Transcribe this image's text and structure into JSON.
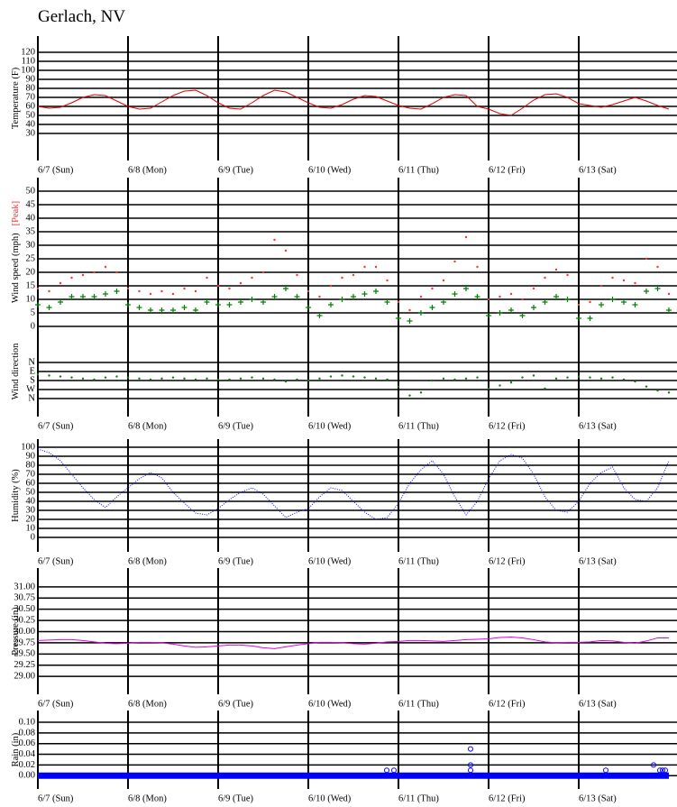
{
  "title": "Gerlach, NV",
  "chart_data": [
    {
      "type": "line",
      "ylabel": "Temperature (F)",
      "grid": true,
      "x": [
        0,
        0.125,
        0.25,
        0.375,
        0.5,
        0.625,
        0.75,
        0.875,
        1,
        1.125,
        1.25,
        1.375,
        1.5,
        1.625,
        1.75,
        1.875,
        2,
        2.125,
        2.25,
        2.375,
        2.5,
        2.625,
        2.75,
        2.875,
        3,
        3.125,
        3.25,
        3.375,
        3.5,
        3.625,
        3.75,
        3.875,
        4,
        4.125,
        4.25,
        4.375,
        4.5,
        4.625,
        4.75,
        4.875,
        5,
        5.125,
        5.25,
        5.375,
        5.5,
        5.625,
        5.75,
        5.875,
        6,
        6.125,
        6.25,
        6.375,
        6.5,
        6.625,
        6.75,
        6.875,
        7
      ],
      "xlim": [
        0,
        7
      ],
      "xticks": [
        {
          "value": 0,
          "label": "6/7 (Sun)"
        },
        {
          "value": 1,
          "label": "6/8 (Mon)"
        },
        {
          "value": 2,
          "label": "6/9 (Tue)"
        },
        {
          "value": 3,
          "label": "6/10 (Wed)"
        },
        {
          "value": 4,
          "label": "6/11 (Thu)"
        },
        {
          "value": 5,
          "label": "6/12 (Fri)"
        },
        {
          "value": 6,
          "label": "6/13 (Sat)"
        }
      ],
      "ylim": [
        0,
        138
      ],
      "yticks": [
        30,
        40,
        50,
        60,
        70,
        80,
        90,
        100,
        110,
        120
      ],
      "series": [
        {
          "color": "#e00000",
          "values": [
            60,
            58,
            59,
            64,
            70,
            73,
            72,
            66,
            60,
            57,
            58,
            65,
            72,
            77,
            78,
            72,
            64,
            58,
            57,
            64,
            72,
            78,
            76,
            70,
            64,
            59,
            58,
            62,
            68,
            72,
            71,
            66,
            61,
            58,
            57,
            63,
            70,
            73,
            72,
            60,
            57,
            52,
            50,
            58,
            67,
            73,
            74,
            70,
            63,
            61,
            59,
            62,
            66,
            70,
            66,
            61,
            57
          ]
        }
      ]
    },
    {
      "type": "scatter",
      "ylabel": "Wind speed (mph)",
      "grid": true,
      "xtick_labels": false,
      "x": [
        0,
        0.125,
        0.25,
        0.375,
        0.5,
        0.625,
        0.75,
        0.875,
        1,
        1.125,
        1.25,
        1.375,
        1.5,
        1.625,
        1.75,
        1.875,
        2,
        2.125,
        2.25,
        2.375,
        2.5,
        2.625,
        2.75,
        2.875,
        3,
        3.125,
        3.25,
        3.375,
        3.5,
        3.625,
        3.75,
        3.875,
        4,
        4.125,
        4.25,
        4.375,
        4.5,
        4.625,
        4.75,
        4.875,
        5,
        5.125,
        5.25,
        5.375,
        5.5,
        5.625,
        5.75,
        5.875,
        6,
        6.125,
        6.25,
        6.375,
        6.5,
        6.625,
        6.75,
        6.875,
        7
      ],
      "xlim": [
        0,
        7
      ],
      "xticks": [
        0,
        1,
        2,
        3,
        4,
        5,
        6
      ],
      "ylim": [
        0,
        55
      ],
      "yticks": [
        0,
        5,
        10,
        15,
        20,
        25,
        30,
        35,
        40,
        45,
        50
      ],
      "series": [
        {
          "name": "[Peak]",
          "color": "#ff3030",
          "marker": ".",
          "values": [
            14,
            13,
            16,
            18,
            19,
            20,
            22,
            20,
            14,
            13,
            12,
            13,
            12,
            14,
            13,
            18,
            15,
            14,
            16,
            18,
            20,
            32,
            28,
            19,
            13,
            11,
            15,
            18,
            19,
            22,
            22,
            17,
            9,
            6,
            11,
            14,
            17,
            24,
            33,
            22,
            10,
            11,
            12,
            10,
            14,
            18,
            21,
            19,
            8,
            9,
            15,
            18,
            17,
            16,
            25,
            22,
            12
          ]
        },
        {
          "color": "#008000",
          "marker": "+",
          "values": [
            8,
            7,
            9,
            11,
            11,
            11,
            12,
            13,
            8,
            7,
            6,
            6,
            6,
            7,
            6,
            9,
            8,
            8,
            9,
            10,
            9,
            11,
            14,
            11,
            7,
            4,
            8,
            10,
            11,
            12,
            13,
            9,
            3,
            2,
            5,
            7,
            9,
            12,
            14,
            11,
            4,
            5,
            6,
            4,
            7,
            9,
            11,
            10,
            3,
            3,
            8,
            10,
            9,
            8,
            13,
            14,
            6
          ]
        }
      ]
    },
    {
      "type": "scatter",
      "ylabel": "Wind direction",
      "grid": true,
      "x": [
        0,
        0.125,
        0.25,
        0.375,
        0.5,
        0.625,
        0.75,
        0.875,
        1,
        1.125,
        1.25,
        1.375,
        1.5,
        1.625,
        1.75,
        1.875,
        2,
        2.125,
        2.25,
        2.375,
        2.5,
        2.625,
        2.75,
        2.875,
        3,
        3.125,
        3.25,
        3.375,
        3.5,
        3.625,
        3.75,
        3.875,
        4,
        4.125,
        4.25,
        4.375,
        4.5,
        4.625,
        4.75,
        4.875,
        5,
        5.125,
        5.25,
        5.375,
        5.5,
        5.625,
        5.75,
        5.875,
        6,
        6.125,
        6.25,
        6.375,
        6.5,
        6.625,
        6.75,
        6.875,
        7
      ],
      "xlim": [
        0,
        7
      ],
      "xticks": [
        {
          "value": 0,
          "label": "6/7 (Sun)"
        },
        {
          "value": 1,
          "label": "6/8 (Mon)"
        },
        {
          "value": 2,
          "label": "6/9 (Tue)"
        },
        {
          "value": 3,
          "label": "6/10 (Wed)"
        },
        {
          "value": 4,
          "label": "6/11 (Thu)"
        },
        {
          "value": 5,
          "label": "6/12 (Fri)"
        },
        {
          "value": 6,
          "label": "6/13 (Sat)"
        }
      ],
      "ylim": [
        540,
        -360
      ],
      "yticks": [
        {
          "value": 0,
          "label": "N"
        },
        {
          "value": 90,
          "label": "E"
        },
        {
          "value": 180,
          "label": "S"
        },
        {
          "value": 270,
          "label": "W"
        },
        {
          "value": 360,
          "label": "N"
        }
      ],
      "series": [
        {
          "color": "#008000",
          "marker": ".",
          "values": [
            120,
            130,
            140,
            150,
            160,
            170,
            150,
            140,
            150,
            160,
            170,
            160,
            150,
            160,
            170,
            160,
            170,
            170,
            160,
            150,
            160,
            170,
            190,
            170,
            180,
            160,
            140,
            130,
            140,
            150,
            160,
            170,
            240,
            330,
            300,
            180,
            160,
            170,
            160,
            150,
            260,
            230,
            200,
            150,
            130,
            260,
            160,
            150,
            140,
            150,
            160,
            150,
            170,
            190,
            240,
            280,
            300
          ]
        }
      ]
    },
    {
      "type": "line",
      "ylabel": "Humidity (%)",
      "grid": true,
      "x": [
        0,
        0.125,
        0.25,
        0.375,
        0.5,
        0.625,
        0.75,
        0.875,
        1,
        1.125,
        1.25,
        1.375,
        1.5,
        1.625,
        1.75,
        1.875,
        2,
        2.125,
        2.25,
        2.375,
        2.5,
        2.625,
        2.75,
        2.875,
        3,
        3.125,
        3.25,
        3.375,
        3.5,
        3.625,
        3.75,
        3.875,
        4,
        4.125,
        4.25,
        4.375,
        4.5,
        4.625,
        4.75,
        4.875,
        5,
        5.125,
        5.25,
        5.375,
        5.5,
        5.625,
        5.75,
        5.875,
        6,
        6.125,
        6.25,
        6.375,
        6.5,
        6.625,
        6.75,
        6.875,
        7
      ],
      "xlim": [
        0,
        7
      ],
      "xticks": [
        {
          "value": 0,
          "label": "6/7 (Sun)"
        },
        {
          "value": 1,
          "label": "6/8 (Mon)"
        },
        {
          "value": 2,
          "label": "6/9 (Tue)"
        },
        {
          "value": 3,
          "label": "6/10 (Wed)"
        },
        {
          "value": 4,
          "label": "6/11 (Thu)"
        },
        {
          "value": 5,
          "label": "6/12 (Fri)"
        },
        {
          "value": 6,
          "label": "6/13 (Sat)"
        }
      ],
      "ylim": [
        -16,
        109
      ],
      "yticks": [
        0,
        10,
        20,
        30,
        40,
        50,
        60,
        70,
        80,
        90,
        100
      ],
      "series": [
        {
          "color": "#0000ff",
          "dashed": true,
          "values": [
            98,
            94,
            85,
            70,
            55,
            42,
            33,
            45,
            55,
            65,
            72,
            66,
            50,
            38,
            27,
            25,
            32,
            42,
            50,
            55,
            48,
            35,
            22,
            28,
            32,
            45,
            55,
            52,
            40,
            28,
            20,
            22,
            38,
            60,
            75,
            85,
            70,
            45,
            25,
            40,
            65,
            85,
            92,
            88,
            70,
            45,
            30,
            28,
            40,
            60,
            72,
            78,
            55,
            42,
            40,
            55,
            85
          ]
        }
      ]
    },
    {
      "type": "line",
      "ylabel": "Pressure (in)",
      "grid": true,
      "x": [
        0,
        0.125,
        0.25,
        0.375,
        0.5,
        0.625,
        0.75,
        0.875,
        1,
        1.125,
        1.25,
        1.375,
        1.5,
        1.625,
        1.75,
        1.875,
        2,
        2.125,
        2.25,
        2.375,
        2.5,
        2.625,
        2.75,
        2.875,
        3,
        3.125,
        3.25,
        3.375,
        3.5,
        3.625,
        3.75,
        3.875,
        4,
        4.125,
        4.25,
        4.375,
        4.5,
        4.625,
        4.75,
        4.875,
        5,
        5.125,
        5.25,
        5.375,
        5.5,
        5.625,
        5.75,
        5.875,
        6,
        6.125,
        6.25,
        6.375,
        6.5,
        6.625,
        6.75,
        6.875,
        7
      ],
      "xlim": [
        0,
        7
      ],
      "xticks": [
        {
          "value": 0,
          "label": "6/7 (Sun)"
        },
        {
          "value": 1,
          "label": "6/8 (Mon)"
        },
        {
          "value": 2,
          "label": "6/9 (Tue)"
        },
        {
          "value": 3,
          "label": "6/10 (Wed)"
        },
        {
          "value": 4,
          "label": "6/11 (Thu)"
        },
        {
          "value": 5,
          "label": "6/12 (Fri)"
        },
        {
          "value": 6,
          "label": "6/13 (Sat)"
        }
      ],
      "ylim": [
        28.6,
        31.42
      ],
      "yticks": [
        {
          "value": 29,
          "label": "29.00"
        },
        29.25,
        {
          "value": 29.5,
          "label": "29.50"
        },
        29.75,
        {
          "value": 30,
          "label": "30.00"
        },
        30.25,
        {
          "value": 30.5,
          "label": "30.50"
        },
        30.75,
        {
          "value": 31,
          "label": "31.00"
        }
      ],
      "series": [
        {
          "color": "#e000e0",
          "values": [
            29.8,
            29.81,
            29.82,
            29.82,
            29.8,
            29.77,
            29.74,
            29.73,
            29.74,
            29.76,
            29.76,
            29.75,
            29.72,
            29.68,
            29.65,
            29.66,
            29.68,
            29.7,
            29.7,
            29.68,
            29.64,
            29.62,
            29.66,
            29.7,
            29.73,
            29.76,
            29.76,
            29.75,
            29.73,
            29.72,
            29.74,
            29.77,
            29.78,
            29.8,
            29.8,
            29.79,
            29.78,
            29.8,
            29.82,
            29.83,
            29.84,
            29.87,
            29.88,
            29.86,
            29.82,
            29.77,
            29.75,
            29.76,
            29.76,
            29.77,
            29.8,
            29.79,
            29.76,
            29.74,
            29.79,
            29.86,
            29.86
          ]
        }
      ]
    },
    {
      "type": "scatter",
      "ylabel": "Rain (in)",
      "grid": true,
      "xlim": [
        0,
        7
      ],
      "xticks": [
        {
          "value": 0,
          "label": "6/7 (Sun)"
        },
        {
          "value": 1,
          "label": "6/8 (Mon)"
        },
        {
          "value": 2,
          "label": "6/9 (Tue)"
        },
        {
          "value": 3,
          "label": "6/10 (Wed)"
        },
        {
          "value": 4,
          "label": "6/11 (Thu)"
        },
        {
          "value": 5,
          "label": "6/12 (Fri)"
        },
        {
          "value": 6,
          "label": "6/13 (Sat)"
        }
      ],
      "ylim": [
        -0.025,
        0.122
      ],
      "yticks": [
        {
          "value": 0,
          "label": "0.00"
        },
        0.02,
        0.04,
        0.06,
        0.08,
        {
          "value": 0.1,
          "label": "0.10"
        }
      ],
      "series": [
        {
          "color": "#0000ff",
          "line_width": 7,
          "x": [
            0,
            7
          ],
          "values": [
            0,
            0
          ]
        },
        {
          "color": "#0000ff",
          "marker": "o",
          "x": [
            3.87,
            3.95,
            4.8,
            4.8,
            4.8,
            6.3,
            6.83,
            6.9,
            6.93,
            6.96
          ],
          "values": [
            0.01,
            0.01,
            0.05,
            0.02,
            0.01,
            0.01,
            0.02,
            0.01,
            0.01,
            0.01
          ]
        }
      ]
    }
  ]
}
